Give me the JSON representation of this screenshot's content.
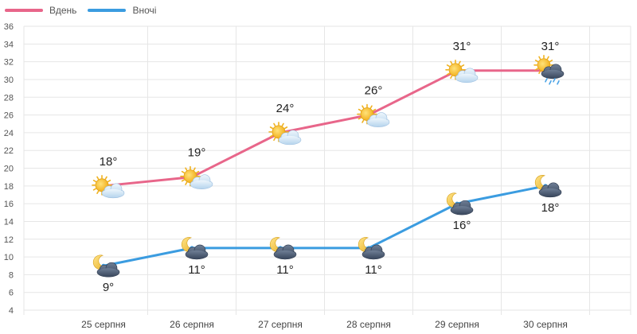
{
  "chart_data": {
    "type": "line",
    "categories": [
      "25 серпня",
      "26 серпня",
      "27 серпня",
      "28 серпня",
      "29 серпня",
      "30 серпня"
    ],
    "series": [
      {
        "name": "Вдень",
        "values": [
          18,
          19,
          24,
          26,
          31,
          31
        ],
        "labels": [
          "18°",
          "19°",
          "24°",
          "26°",
          "31°",
          "31°"
        ],
        "color": "#e8668a",
        "icons": [
          "sun-cloud-icon",
          "sun-cloud-icon",
          "sun-cloud-icon",
          "sun-cloud-icon",
          "sun-cloud-icon",
          "sun-rain-cloud-icon"
        ]
      },
      {
        "name": "Вночі",
        "values": [
          9,
          11,
          11,
          11,
          16,
          18
        ],
        "labels": [
          "9°",
          "11°",
          "11°",
          "11°",
          "16°",
          "18°"
        ],
        "color": "#3b9ce0",
        "icons": [
          "moon-cloud-icon",
          "moon-cloud-icon",
          "moon-cloud-icon",
          "moon-cloud-icon",
          "moon-cloud-icon",
          "moon-cloud-icon"
        ]
      }
    ],
    "ylim": [
      4,
      36
    ],
    "yticks": [
      4,
      6,
      8,
      10,
      12,
      14,
      16,
      18,
      20,
      22,
      24,
      26,
      28,
      30,
      32,
      34,
      36
    ],
    "grid": true,
    "legend_position": "top-left"
  }
}
